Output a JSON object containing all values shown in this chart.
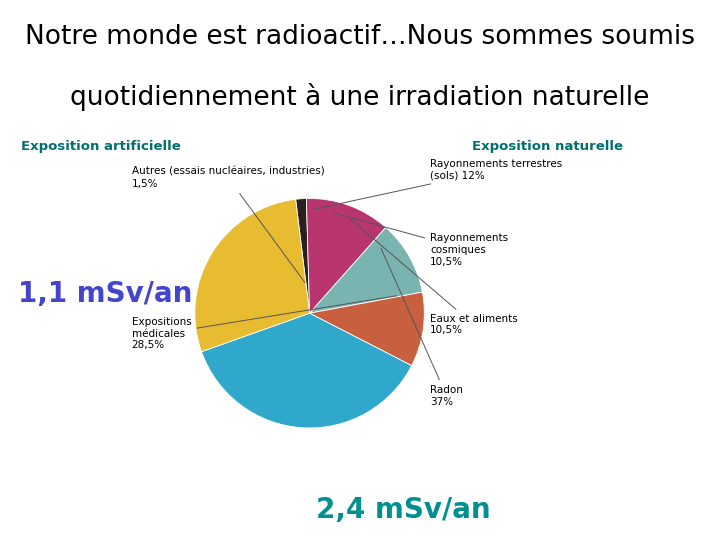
{
  "title_line1": "Notre monde est radioactif…Nous sommes soumis",
  "title_line2": "quotidiennement à une irradiation naturelle",
  "title_fontsize": 19,
  "separator_color": "#e8e800",
  "label_artificielle": "Exposition artificielle",
  "label_naturelle": "Exposition naturelle",
  "label_color": "#007070",
  "annotation_1": "1,1 mSv/an",
  "annotation_2": "2,4 mSv/an",
  "annotation1_color": "#4444cc",
  "annotation2_color": "#009090",
  "bg_color": "#ffffff",
  "chart_bg": "#f0ecf0",
  "pie_colors": [
    "#2a2020",
    "#b83570",
    "#7ab4b0",
    "#c86040",
    "#30a8cc",
    "#e8bc30"
  ],
  "pie_sizes": [
    1.5,
    12.0,
    10.5,
    10.5,
    37.0,
    28.5
  ],
  "startangle": 97,
  "label_autres": "Autres (essais nucléaires, industries)\n1,5%",
  "label_terrestres": "Rayonnements terrestres\n(sols) 12%",
  "label_cosmiques": "Rayonnements\ncosmiques\n10,5%",
  "label_eaux": "Eaux et aliments\n10,5%",
  "label_radon": "Radon\n37%",
  "label_medicales": "Expositions\nmédicales\n28,5%"
}
